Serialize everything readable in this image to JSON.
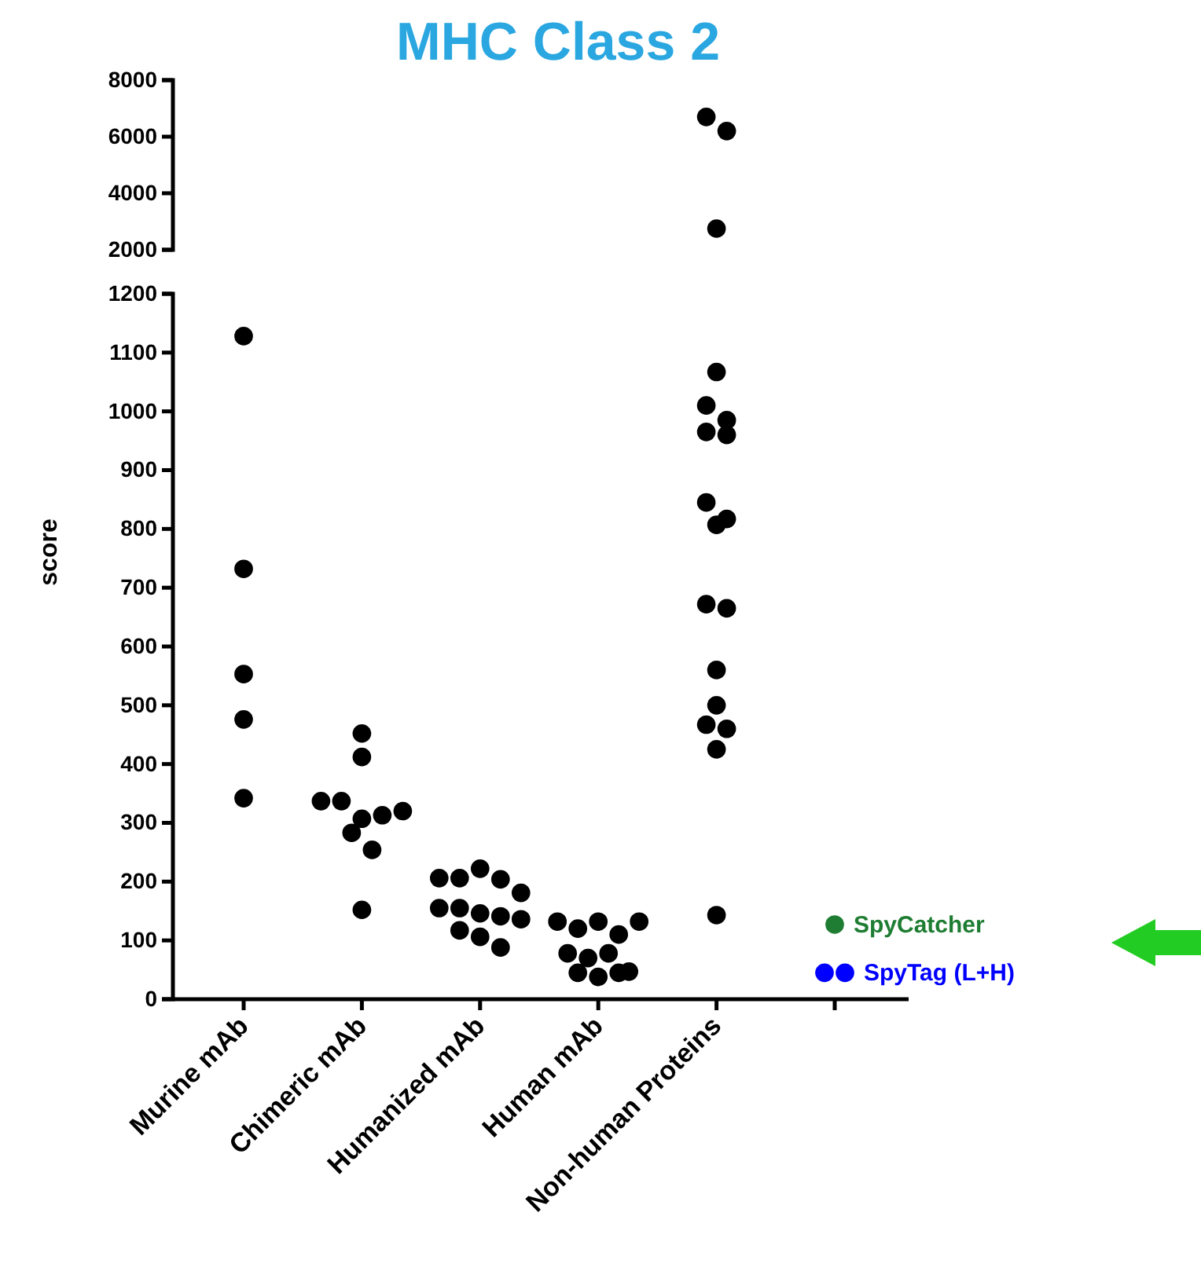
{
  "chart_data": [
    {
      "type": "scatter",
      "title": "MHC Class 2",
      "categories": [
        "Murine mAb",
        "Chimeric mAb",
        "Humanized mAb",
        "Human mAb",
        "Non-human Proteins",
        null
      ],
      "ylim": [
        2000,
        8000
      ],
      "yticks": [
        2000,
        4000,
        6000,
        8000
      ],
      "tick_labels": "y",
      "marker": "circle",
      "series": [
        {
          "color": "#000000",
          "x": [
            "Non-human Proteins",
            "Non-human Proteins",
            "Non-human Proteins"
          ],
          "values": [
            6700,
            6200,
            2750
          ]
        }
      ]
    },
    {
      "type": "scatter",
      "categories": [
        "Murine mAb",
        "Chimeric mAb",
        "Humanized mAb",
        "Human mAb",
        "Non-human Proteins",
        null
      ],
      "ylabel": "score",
      "ylim": [
        0,
        1200
      ],
      "yticks": [
        0,
        100,
        200,
        300,
        400,
        500,
        600,
        700,
        800,
        900,
        1000,
        1100,
        1200
      ],
      "marker": "circle",
      "series": [
        {
          "color": "#000000",
          "x": [
            "Murine mAb",
            "Murine mAb",
            "Murine mAb",
            "Murine mAb",
            "Murine mAb",
            "Chimeric mAb",
            "Chimeric mAb",
            "Chimeric mAb",
            "Chimeric mAb",
            "Chimeric mAb",
            "Chimeric mAb",
            "Chimeric mAb",
            "Chimeric mAb",
            "Chimeric mAb",
            "Chimeric mAb",
            "Humanized mAb",
            "Humanized mAb",
            "Humanized mAb",
            "Humanized mAb",
            "Humanized mAb",
            "Humanized mAb",
            "Humanized mAb",
            "Humanized mAb",
            "Humanized mAb",
            "Humanized mAb",
            "Humanized mAb",
            "Humanized mAb",
            "Humanized mAb",
            "Human mAb",
            "Human mAb",
            "Human mAb",
            "Human mAb",
            "Human mAb",
            "Human mAb",
            "Human mAb",
            "Human mAb",
            "Human mAb",
            "Human mAb",
            "Human mAb",
            "Human mAb",
            "Non-human Proteins",
            "Non-human Proteins",
            "Non-human Proteins",
            "Non-human Proteins",
            "Non-human Proteins",
            "Non-human Proteins",
            "Non-human Proteins",
            "Non-human Proteins",
            "Non-human Proteins",
            "Non-human Proteins",
            "Non-human Proteins",
            "Non-human Proteins",
            "Non-human Proteins",
            "Non-human Proteins",
            "Non-human Proteins",
            "Non-human Proteins"
          ],
          "values": [
            1128,
            732,
            553,
            476,
            342,
            452,
            412,
            337,
            337,
            307,
            313,
            320,
            283,
            254,
            152,
            206,
            206,
            222,
            204,
            181,
            155,
            155,
            146,
            141,
            136,
            117,
            106,
            88,
            132,
            120,
            132,
            110,
            132,
            78,
            70,
            78,
            45,
            38,
            45,
            47,
            1067,
            1010,
            985,
            965,
            960,
            845,
            817,
            807,
            672,
            665,
            560,
            500,
            467,
            460,
            425,
            143
          ]
        },
        {
          "name": "SpyCatcher",
          "color": "#1e7d32",
          "values": [
            null,
            null,
            null,
            null,
            null,
            127
          ]
        },
        {
          "name": "SpyTag (L+H)",
          "color": "#0000ff",
          "values": [
            null,
            null,
            null,
            null,
            null,
            45
          ]
        },
        {
          "color": "#0000ff",
          "values": [
            null,
            null,
            null,
            null,
            null,
            45
          ]
        }
      ]
    }
  ]
}
